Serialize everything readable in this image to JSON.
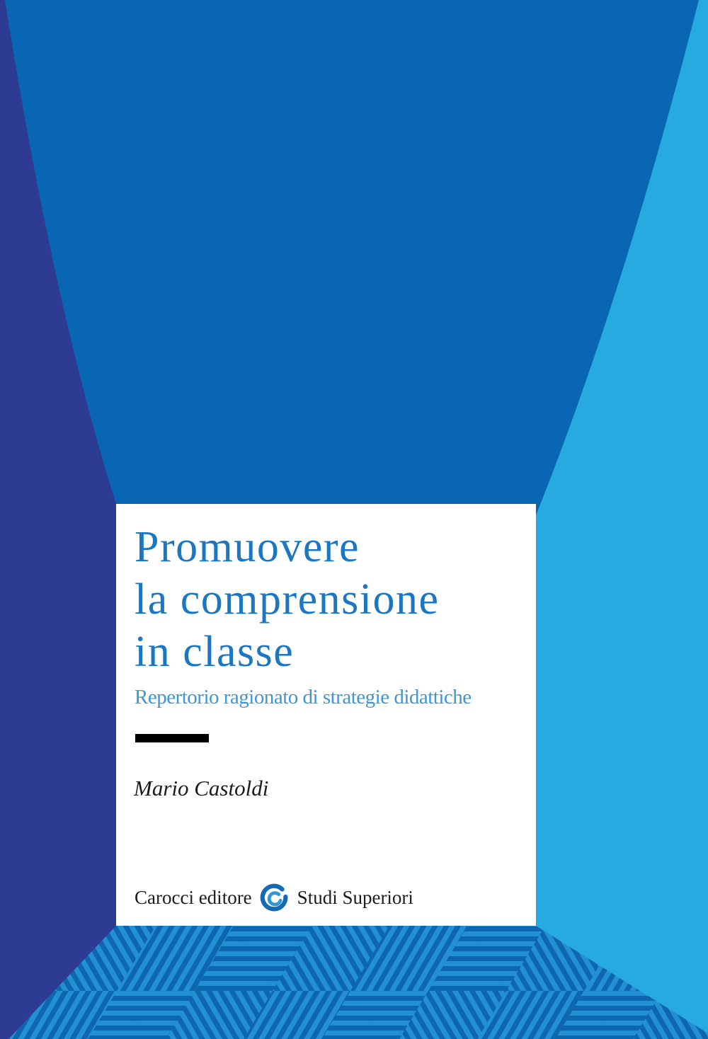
{
  "cover": {
    "title_lines": [
      "Promuovere",
      "la comprensione",
      "in classe"
    ],
    "subtitle": "Repertorio ragionato di strategie didattiche",
    "author": "Mario Castoldi",
    "publisher": "Carocci editore",
    "series": "Studi Superiori",
    "logo_icon": "carocci-at-icon"
  },
  "colors": {
    "left_wall_navy": "#2d3c92",
    "back_wall_blue": "#0866b2",
    "right_wall_cyan": "#27aae1",
    "floor_base_blue": "#0d66ae",
    "floor_stripe_blue": "#2490d4",
    "panel_white": "#ffffff",
    "title_blue": "#1b77c2",
    "subtitle_blue": "#3f96d1",
    "text_black": "#1c1c1c",
    "rule_black": "#000000",
    "logo_outer_blue": "#1669b4",
    "logo_inner_blue": "#2e97d8"
  }
}
